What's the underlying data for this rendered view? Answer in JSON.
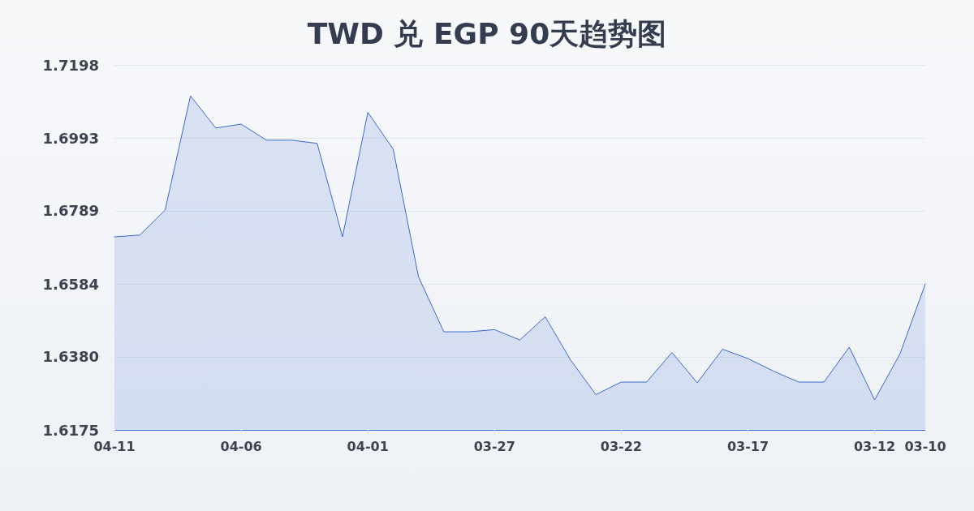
{
  "chart_data": {
    "type": "area",
    "title": "TWD 兑 EGP 90天趋势图",
    "categories": [
      "04-11",
      null,
      null,
      null,
      null,
      "04-06",
      null,
      null,
      null,
      null,
      "04-01",
      null,
      null,
      null,
      null,
      "03-27",
      null,
      null,
      null,
      null,
      "03-22",
      null,
      null,
      null,
      null,
      "03-17",
      null,
      null,
      null,
      null,
      "03-12",
      null,
      "03-10"
    ],
    "values": [
      1.6716,
      1.6721,
      1.6791,
      1.7111,
      1.7021,
      1.7032,
      1.6987,
      1.6987,
      1.6978,
      1.6716,
      1.7065,
      1.6962,
      1.6604,
      1.645,
      1.645,
      1.6456,
      1.6427,
      1.6492,
      1.6371,
      1.6274,
      1.6309,
      1.6309,
      1.6392,
      1.6307,
      1.6401,
      1.6375,
      1.634,
      1.6309,
      1.6309,
      1.6407,
      1.6259,
      1.6388,
      1.6584
    ],
    "color": "#3a6ad0",
    "ylim": [
      1.6175,
      1.7198
    ],
    "yticks": [
      1.6175,
      {
        "value": 1.638,
        "label": "1.6380"
      },
      1.6584,
      1.6789,
      1.6993,
      1.7198
    ],
    "grid": "y",
    "marker": "none",
    "line_style": "solid"
  }
}
